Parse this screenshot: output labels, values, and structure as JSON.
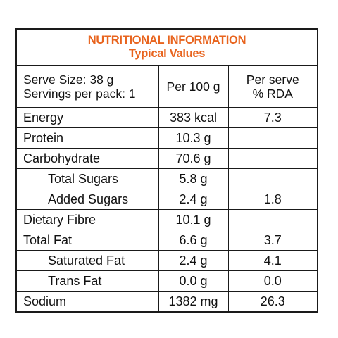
{
  "header": {
    "title": "NUTRITIONAL INFORMATION",
    "subtitle": "Typical Values"
  },
  "columns": {
    "serve_size": "Serve Size: 38 g",
    "servings_per_pack": "Servings per pack: 1",
    "per_100g": "Per 100 g",
    "per_serve_line1": "Per serve",
    "per_serve_line2": "% RDA"
  },
  "rows": [
    {
      "nutrient": "Energy",
      "per_100g": "383 kcal",
      "rda": "7.3",
      "indent": false
    },
    {
      "nutrient": "Protein",
      "per_100g": "10.3 g",
      "rda": "",
      "indent": false
    },
    {
      "nutrient": "Carbohydrate",
      "per_100g": "70.6 g",
      "rda": "",
      "indent": false
    },
    {
      "nutrient": "Total Sugars",
      "per_100g": "5.8 g",
      "rda": "",
      "indent": true
    },
    {
      "nutrient": "Added Sugars",
      "per_100g": "2.4 g",
      "rda": "1.8",
      "indent": true
    },
    {
      "nutrient": "Dietary Fibre",
      "per_100g": "10.1 g",
      "rda": "",
      "indent": false
    },
    {
      "nutrient": "Total Fat",
      "per_100g": "6.6 g",
      "rda": "3.7",
      "indent": false
    },
    {
      "nutrient": "Saturated Fat",
      "per_100g": "2.4 g",
      "rda": "4.1",
      "indent": true
    },
    {
      "nutrient": "Trans Fat",
      "per_100g": "0.0 g",
      "rda": "0.0",
      "indent": true
    },
    {
      "nutrient": "Sodium",
      "per_100g": "1382 mg",
      "rda": "26.3",
      "indent": false
    }
  ],
  "colors": {
    "title": "#e8641e",
    "border": "#1a1a1a"
  }
}
